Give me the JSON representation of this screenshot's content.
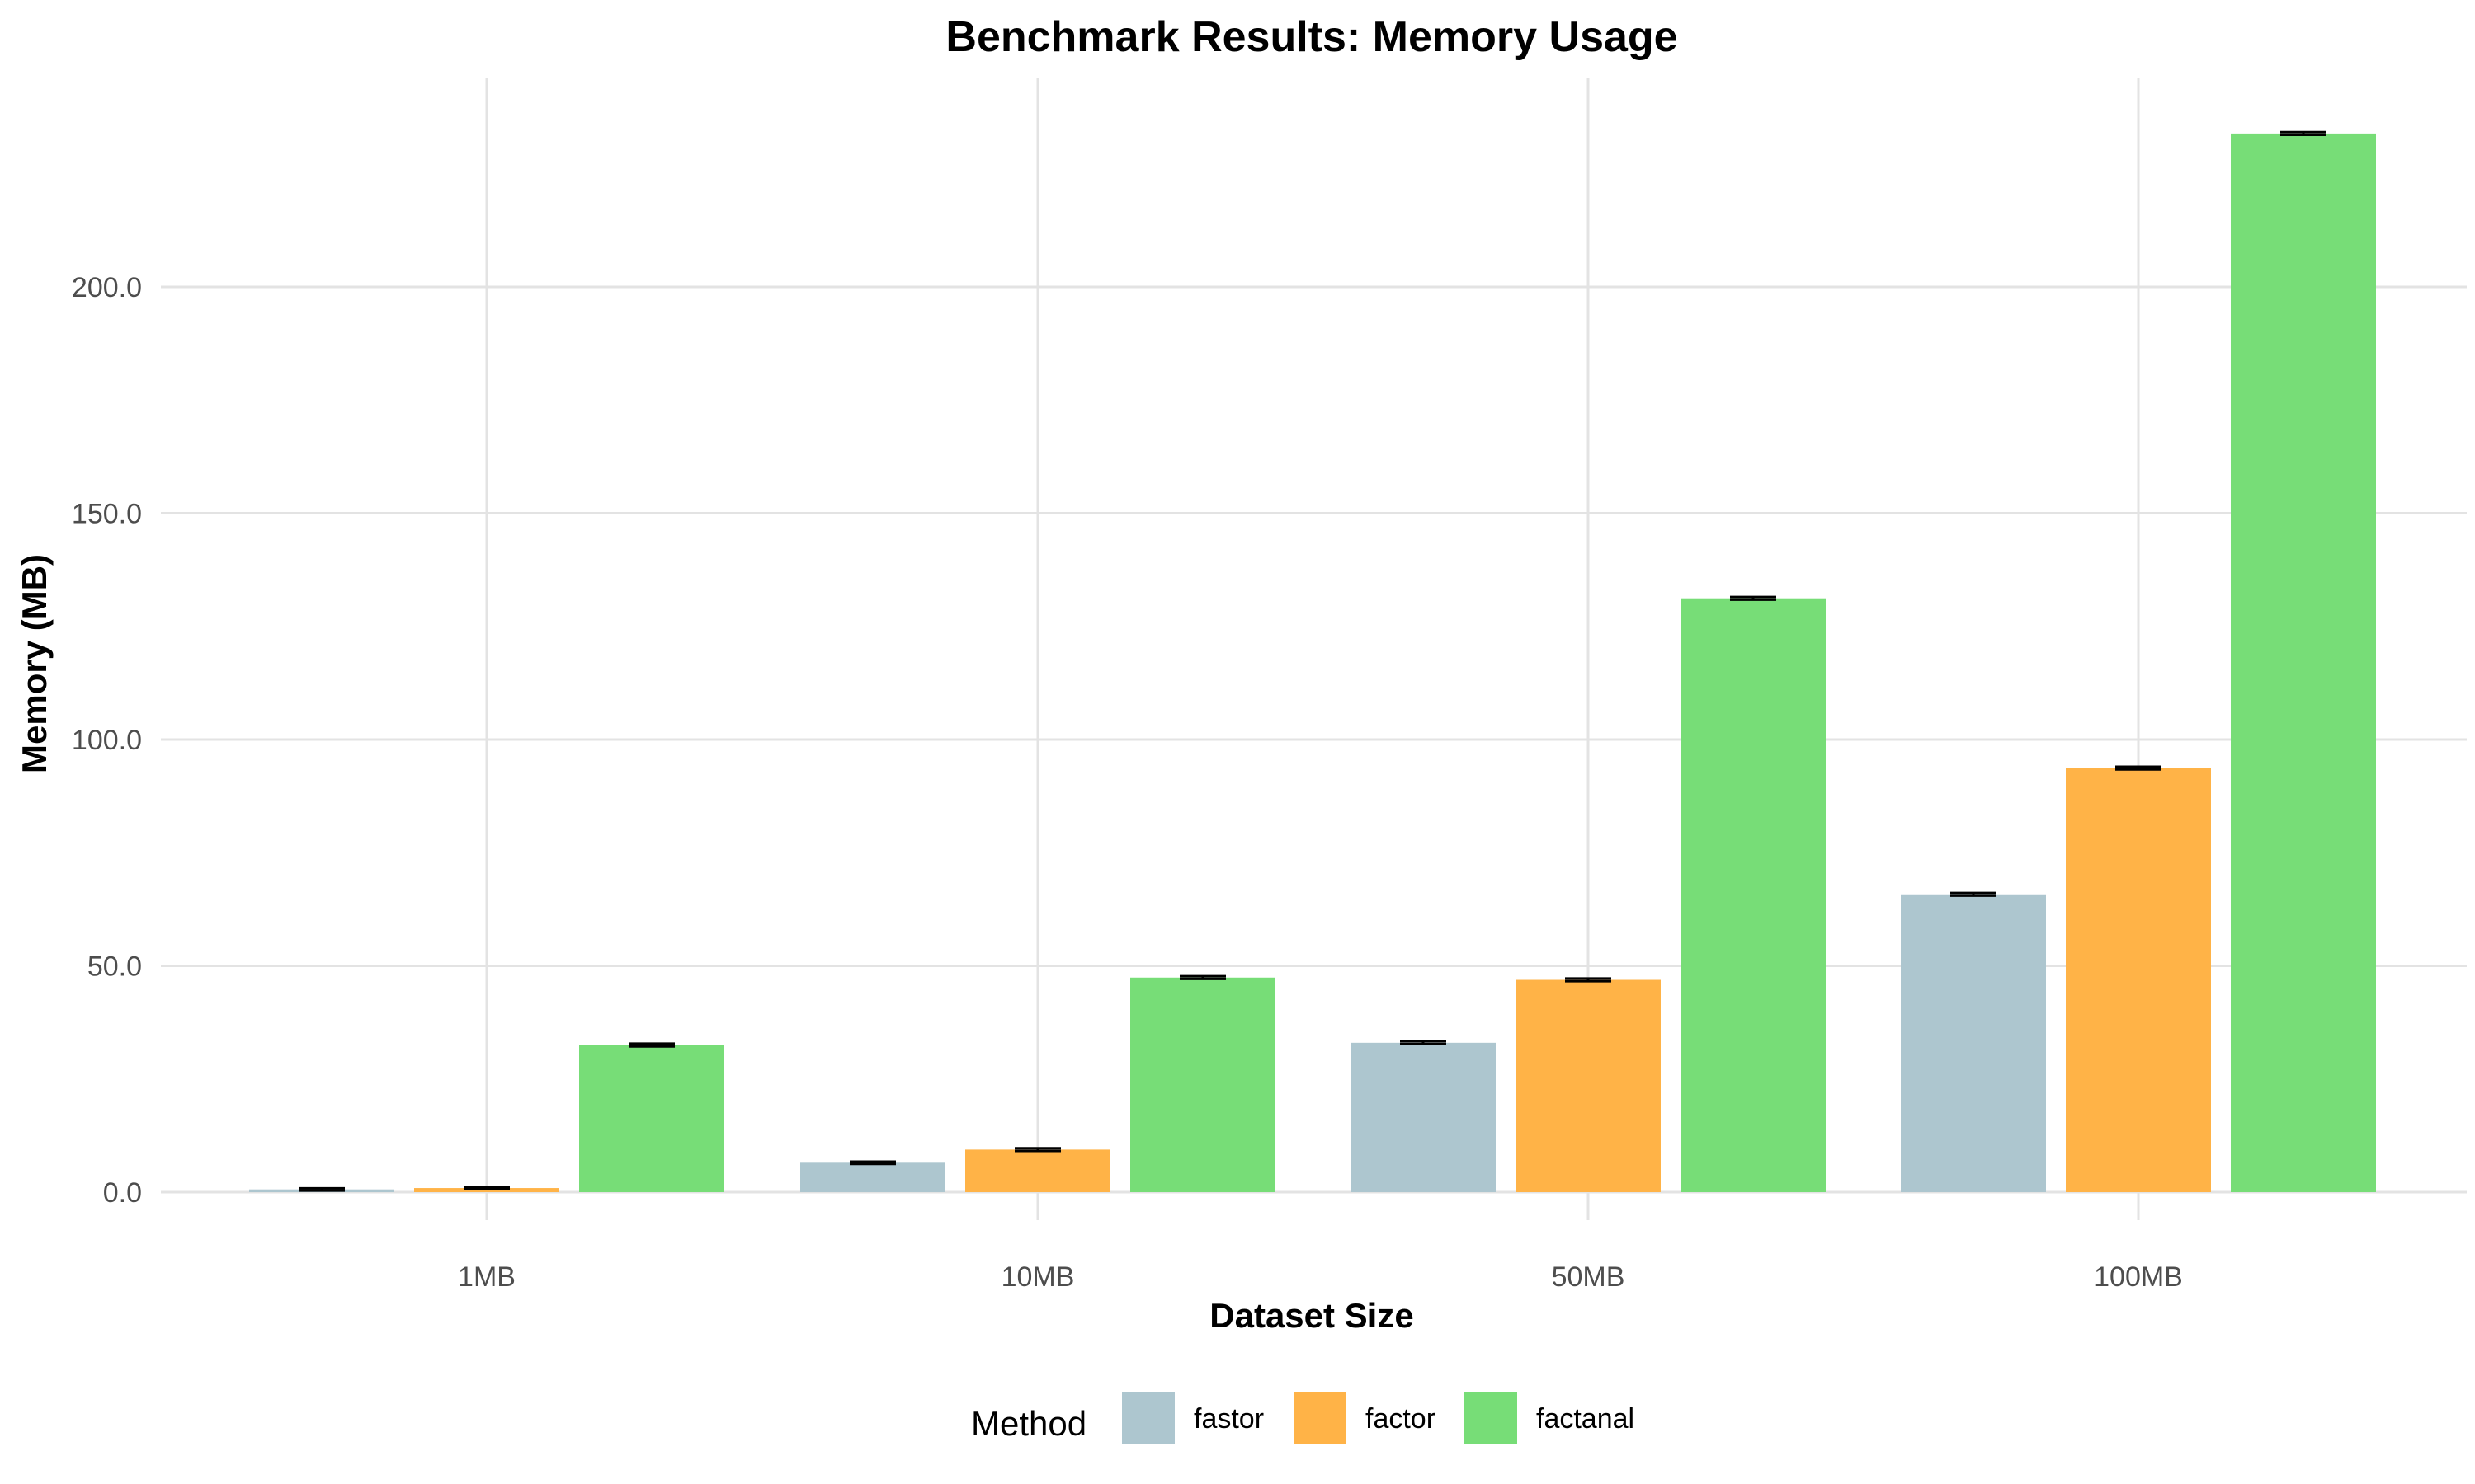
{
  "chart_data": {
    "type": "bar",
    "title": "Benchmark Results: Memory Usage",
    "xlabel": "Dataset Size",
    "ylabel": "Memory (MB)",
    "categories": [
      "1MB",
      "10MB",
      "50MB",
      "100MB"
    ],
    "ylim": [
      -5,
      245
    ],
    "yticks": [
      0,
      50,
      100,
      150,
      200
    ],
    "ytick_labels": [
      "0.0",
      "50.0",
      "100.0",
      "150.0",
      "200.0"
    ],
    "grid": true,
    "legend": {
      "title": "Method",
      "position": "bottom"
    },
    "series": [
      {
        "name": "fastor",
        "color": "#adc6cf",
        "values": [
          0.6,
          6.5,
          33.0,
          65.8
        ],
        "errors": [
          0.25,
          0.25,
          0.3,
          0.3
        ]
      },
      {
        "name": "factor",
        "color": "#ffb347",
        "values": [
          0.9,
          9.4,
          46.9,
          93.7
        ],
        "errors": [
          0.25,
          0.3,
          0.3,
          0.3
        ]
      },
      {
        "name": "factanal",
        "color": "#77dd77",
        "values": [
          32.5,
          47.4,
          131.2,
          233.9
        ],
        "errors": [
          0.3,
          0.3,
          0.3,
          0.3
        ]
      }
    ]
  }
}
